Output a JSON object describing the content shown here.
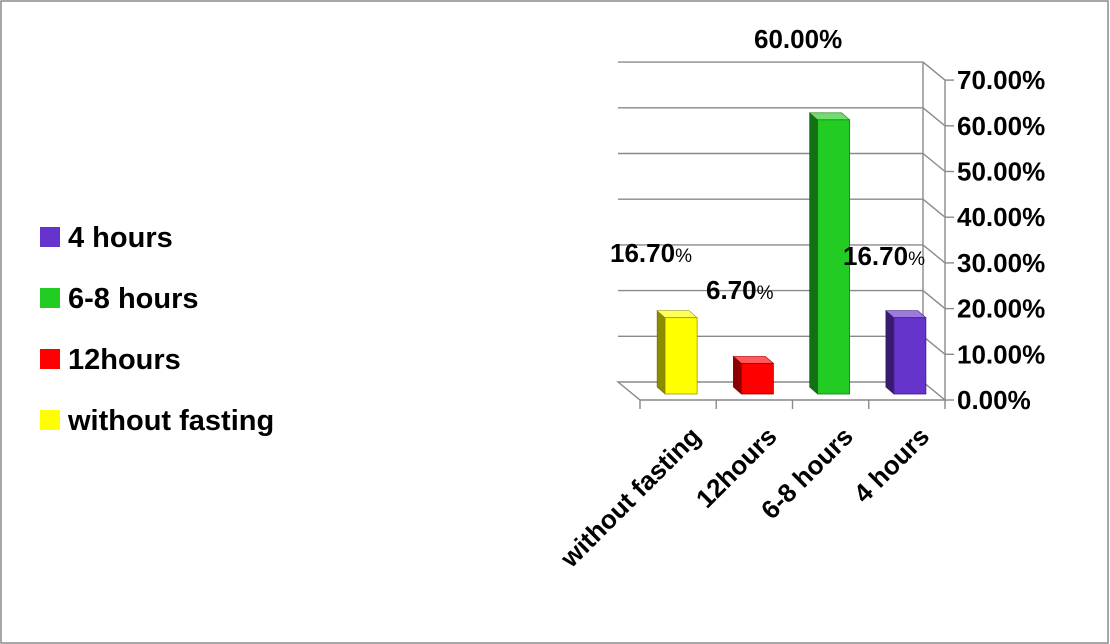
{
  "chart_data": {
    "type": "bar",
    "categories": [
      "without fasting",
      "12hours",
      "6-8 hours",
      "4 hours"
    ],
    "values": [
      16.7,
      6.7,
      60.0,
      16.7
    ],
    "data_labels": [
      {
        "main": "16.70",
        "suffix": "%"
      },
      {
        "main": "6.70",
        "suffix": "%"
      },
      {
        "main": "60.00%",
        "suffix": ""
      },
      {
        "main": "16.70",
        "suffix": "%"
      }
    ],
    "colors": [
      "#ffff00",
      "#ff0000",
      "#22cc22",
      "#6633cc"
    ],
    "ylim": [
      0,
      70
    ],
    "y_ticks": [
      0,
      10,
      20,
      30,
      40,
      50,
      60,
      70
    ],
    "y_tick_labels": [
      "0.00%",
      "10.00%",
      "20.00%",
      "30.00%",
      "40.00%",
      "50.00%",
      "60.00%",
      "70.00%"
    ],
    "y_axis_position": "right",
    "x_tick_rotation": "-45deg",
    "style": "3d-column",
    "grid": true,
    "legend": {
      "placement": "left",
      "entries": [
        {
          "label": "4 hours",
          "color": "#6633cc"
        },
        {
          "label": "6-8 hours",
          "color": "#22cc22"
        },
        {
          "label": "12hours",
          "color": "#ff0000"
        },
        {
          "label": "without fasting",
          "color": "#ffff00"
        }
      ]
    },
    "title": "",
    "xlabel": "",
    "ylabel": ""
  }
}
